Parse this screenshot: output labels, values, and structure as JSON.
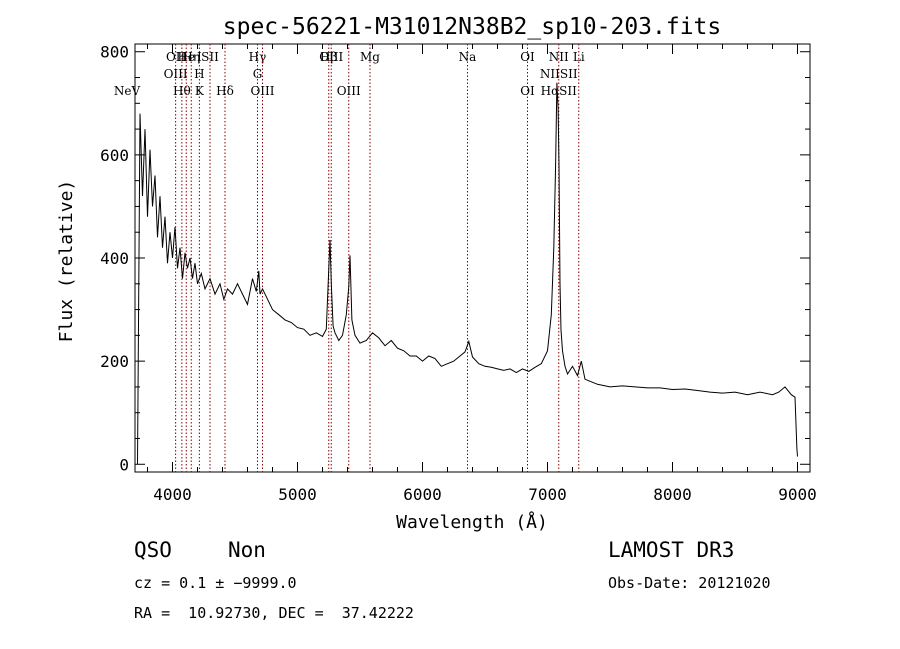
{
  "chart_data": {
    "type": "line",
    "title": "spec-56221-M31012N38B2_sp10-203.fits",
    "xlabel": "Wavelength (Å)",
    "ylabel": "Flux (relative)",
    "xlim": [
      3700,
      9100
    ],
    "ylim": [
      -15,
      815
    ],
    "xticks": [
      "4000",
      "5000",
      "6000",
      "7000",
      "8000",
      "9000"
    ],
    "yticks": [
      "0",
      "200",
      "400",
      "600",
      "800"
    ],
    "grid": false,
    "line_color": "#000000",
    "marker_color": "#8b0000",
    "series": [
      {
        "x": [
          3720,
          3740,
          3760,
          3780,
          3800,
          3820,
          3840,
          3860,
          3880,
          3900,
          3920,
          3940,
          3960,
          3980,
          4000,
          4020,
          4040,
          4060,
          4080,
          4100,
          4120,
          4140,
          4160,
          4180,
          4200,
          4230,
          4260,
          4300,
          4340,
          4380,
          4410,
          4440,
          4480,
          4520,
          4560,
          4600,
          4640,
          4670,
          4690,
          4700,
          4720,
          4750,
          4800,
          4850,
          4900,
          4950,
          5000,
          5050,
          5100,
          5150,
          5200,
          5230,
          5250,
          5260,
          5270,
          5285,
          5300,
          5330,
          5360,
          5390,
          5410,
          5420,
          5435,
          5460,
          5500,
          5550,
          5600,
          5650,
          5700,
          5750,
          5800,
          5850,
          5900,
          5950,
          6000,
          6050,
          6100,
          6150,
          6200,
          6250,
          6300,
          6340,
          6370,
          6400,
          6450,
          6500,
          6550,
          6600,
          6650,
          6700,
          6750,
          6800,
          6850,
          6900,
          6950,
          7000,
          7030,
          7050,
          7065,
          7075,
          7085,
          7092,
          7100,
          7108,
          7120,
          7140,
          7160,
          7200,
          7240,
          7270,
          7300,
          7350,
          7400,
          7500,
          7600,
          7700,
          7800,
          7900,
          8000,
          8100,
          8200,
          8300,
          8400,
          8500,
          8600,
          8700,
          8800,
          8850,
          8900,
          8950,
          8980,
          8995,
          9000
        ],
        "y": [
          0,
          680,
          520,
          650,
          480,
          610,
          500,
          560,
          440,
          520,
          420,
          480,
          390,
          450,
          400,
          460,
          380,
          420,
          360,
          410,
          380,
          400,
          360,
          390,
          350,
          370,
          340,
          360,
          330,
          350,
          320,
          340,
          330,
          350,
          330,
          310,
          360,
          335,
          375,
          330,
          340,
          325,
          300,
          290,
          280,
          275,
          265,
          262,
          250,
          255,
          248,
          262,
          380,
          435,
          350,
          268,
          255,
          240,
          250,
          290,
          345,
          405,
          280,
          250,
          235,
          240,
          255,
          245,
          230,
          240,
          225,
          220,
          210,
          210,
          200,
          210,
          205,
          190,
          195,
          200,
          210,
          218,
          238,
          208,
          195,
          190,
          188,
          185,
          182,
          185,
          178,
          185,
          180,
          188,
          195,
          220,
          290,
          420,
          580,
          740,
          690,
          580,
          350,
          260,
          220,
          190,
          175,
          190,
          172,
          200,
          165,
          160,
          155,
          150,
          152,
          150,
          148,
          148,
          145,
          146,
          143,
          140,
          138,
          140,
          135,
          140,
          135,
          140,
          150,
          135,
          130,
          30,
          15
        ]
      }
    ],
    "line_markers": [
      {
        "x": 3426,
        "labels": [],
        "labels_lower": [
          "NeV"
        ]
      },
      {
        "x": 4025,
        "labels": [
          "OII",
          "OIII"
        ],
        "labels_lower": []
      },
      {
        "x": 4075,
        "labels": [],
        "labels_lower": [
          "Hθ"
        ]
      },
      {
        "x": 4110,
        "labels": [
          "He"
        ],
        "labels_lower": []
      },
      {
        "x": 4150,
        "labels": [
          "Hη"
        ],
        "labels_lower": []
      },
      {
        "x": 4215,
        "labels": [
          "I",
          "H"
        ],
        "labels_lower": [
          "K"
        ]
      },
      {
        "x": 4300,
        "labels": [
          "SII"
        ],
        "labels_lower": []
      },
      {
        "x": 4420,
        "labels": [],
        "labels_lower": [
          "Hδ"
        ]
      },
      {
        "x": 4680,
        "labels": [
          "Hγ",
          "G"
        ],
        "labels_lower": []
      },
      {
        "x": 4720,
        "labels": [],
        "labels_lower": [
          "OIII"
        ]
      },
      {
        "x": 5270,
        "labels": [
          "OIII"
        ],
        "labels_lower": []
      },
      {
        "x": 5250,
        "labels": [
          "Hβ"
        ],
        "labels_lower": []
      },
      {
        "x": 5410,
        "labels": [],
        "labels_lower": [
          "OIII"
        ]
      },
      {
        "x": 5580,
        "labels": [
          "Mg"
        ],
        "labels_lower": []
      },
      {
        "x": 6360,
        "labels": [
          "Na"
        ],
        "labels_lower": []
      },
      {
        "x": 6840,
        "labels": [
          "OI"
        ],
        "labels_lower": [
          "OI"
        ]
      },
      {
        "x": 7090,
        "labels": [
          "NII",
          "NIISII"
        ],
        "labels_lower": [
          "HαSII"
        ]
      },
      {
        "x": 7250,
        "labels": [
          "Li"
        ],
        "labels_lower": []
      }
    ]
  },
  "info": {
    "class": "QSO",
    "subclass": "Non",
    "survey": "LAMOST DR3",
    "cz_line": "cz = 0.1 ± −9999.0",
    "obs_date": "Obs-Date: 20121020",
    "coords": "RA =  10.92730, DEC =  37.42222"
  }
}
